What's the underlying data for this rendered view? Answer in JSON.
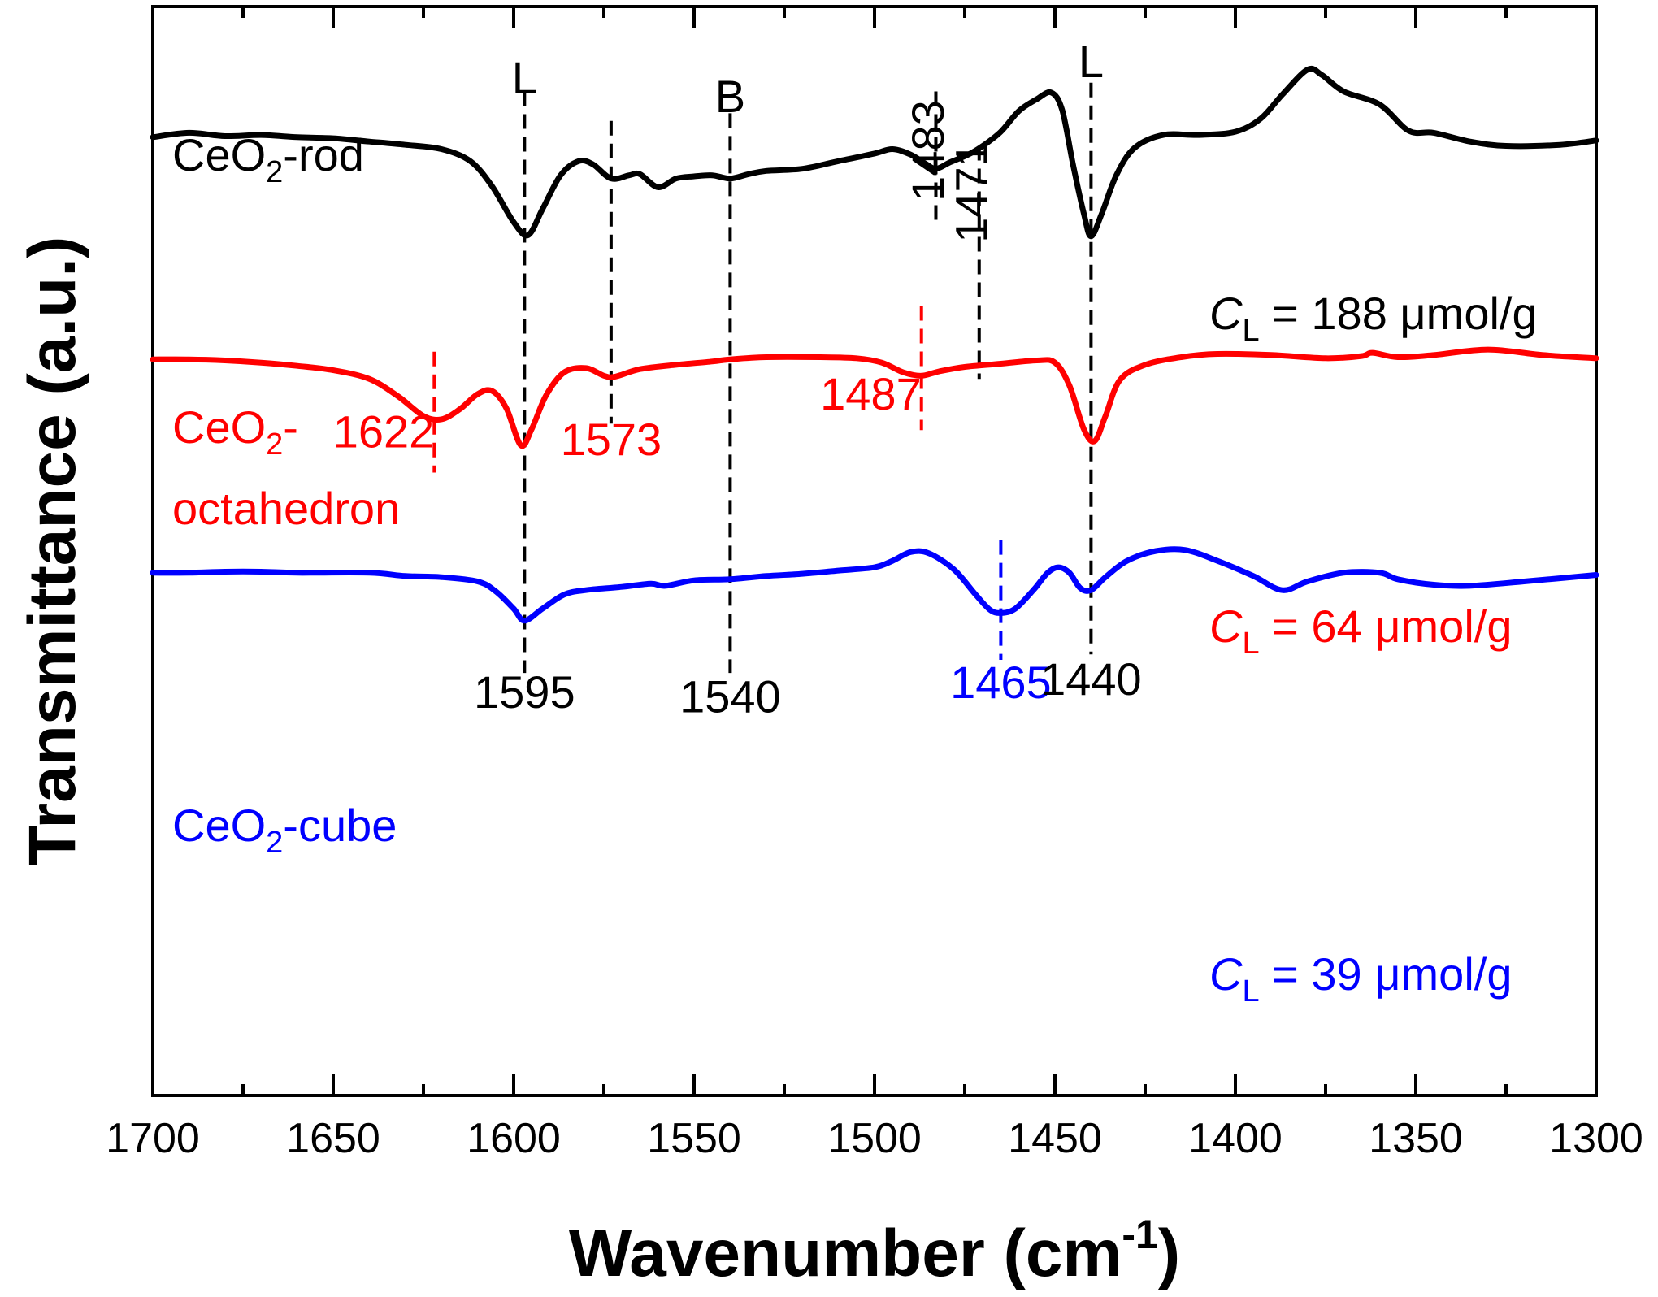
{
  "chart_data": {
    "type": "line",
    "xlabel": "Wavenumber (cm",
    "xlabel_sup": "-1",
    "xlabel_end": ")",
    "ylabel": "Transmittance (a.u.)",
    "xlim": [
      1700,
      1300
    ],
    "x_reversed": true,
    "y_ticks": "none",
    "xticks": [
      1700,
      1650,
      1600,
      1550,
      1500,
      1450,
      1400,
      1350,
      1300
    ],
    "grid": false,
    "series": [
      {
        "name": "CeO2-rod",
        "color": "#000000",
        "name_parts": [
          "CeO",
          "2",
          "-rod"
        ],
        "cl_label": [
          "C",
          "L",
          " = 188 μmol/g"
        ],
        "points": [
          [
            1700,
            0.12
          ],
          [
            1690,
            0.116
          ],
          [
            1680,
            0.119
          ],
          [
            1670,
            0.118
          ],
          [
            1660,
            0.12
          ],
          [
            1650,
            0.121
          ],
          [
            1640,
            0.124
          ],
          [
            1630,
            0.127
          ],
          [
            1620,
            0.131
          ],
          [
            1612,
            0.142
          ],
          [
            1606,
            0.165
          ],
          [
            1600,
            0.198
          ],
          [
            1596,
            0.21
          ],
          [
            1592,
            0.186
          ],
          [
            1587,
            0.155
          ],
          [
            1582,
            0.142
          ],
          [
            1578,
            0.145
          ],
          [
            1573,
            0.158
          ],
          [
            1568,
            0.155
          ],
          [
            1565,
            0.154
          ],
          [
            1560,
            0.166
          ],
          [
            1555,
            0.158
          ],
          [
            1550,
            0.156
          ],
          [
            1545,
            0.155
          ],
          [
            1540,
            0.158
          ],
          [
            1535,
            0.154
          ],
          [
            1530,
            0.151
          ],
          [
            1520,
            0.149
          ],
          [
            1510,
            0.142
          ],
          [
            1500,
            0.135
          ],
          [
            1495,
            0.131
          ],
          [
            1490,
            0.136
          ],
          [
            1486,
            0.144
          ],
          [
            1483,
            0.149
          ],
          [
            1479,
            0.143
          ],
          [
            1474,
            0.136
          ],
          [
            1470,
            0.128
          ],
          [
            1465,
            0.115
          ],
          [
            1460,
            0.096
          ],
          [
            1455,
            0.085
          ],
          [
            1451,
            0.079
          ],
          [
            1448,
            0.095
          ],
          [
            1445,
            0.145
          ],
          [
            1442,
            0.19
          ],
          [
            1440,
            0.211
          ],
          [
            1437,
            0.19
          ],
          [
            1433,
            0.155
          ],
          [
            1428,
            0.13
          ],
          [
            1420,
            0.118
          ],
          [
            1410,
            0.118
          ],
          [
            1400,
            0.115
          ],
          [
            1393,
            0.103
          ],
          [
            1387,
            0.081
          ],
          [
            1380,
            0.058
          ],
          [
            1376,
            0.063
          ],
          [
            1370,
            0.078
          ],
          [
            1360,
            0.09
          ],
          [
            1352,
            0.114
          ],
          [
            1345,
            0.116
          ],
          [
            1335,
            0.124
          ],
          [
            1325,
            0.128
          ],
          [
            1310,
            0.127
          ],
          [
            1300,
            0.123
          ]
        ]
      },
      {
        "name": "CeO2-octahedron",
        "color": "#ff0000",
        "name_parts": [
          "CeO",
          "2",
          "-",
          "octahedron"
        ],
        "cl_label": [
          "C",
          "L",
          " = 64 μmol/g"
        ],
        "points": [
          [
            1700,
            0.324
          ],
          [
            1690,
            0.324
          ],
          [
            1680,
            0.325
          ],
          [
            1670,
            0.327
          ],
          [
            1660,
            0.33
          ],
          [
            1650,
            0.334
          ],
          [
            1640,
            0.342
          ],
          [
            1632,
            0.358
          ],
          [
            1625,
            0.376
          ],
          [
            1620,
            0.379
          ],
          [
            1615,
            0.37
          ],
          [
            1610,
            0.356
          ],
          [
            1606,
            0.353
          ],
          [
            1602,
            0.369
          ],
          [
            1598,
            0.403
          ],
          [
            1595,
            0.388
          ],
          [
            1591,
            0.357
          ],
          [
            1586,
            0.336
          ],
          [
            1580,
            0.332
          ],
          [
            1575,
            0.339
          ],
          [
            1572,
            0.34
          ],
          [
            1565,
            0.333
          ],
          [
            1555,
            0.329
          ],
          [
            1545,
            0.326
          ],
          [
            1540,
            0.324
          ],
          [
            1530,
            0.322
          ],
          [
            1515,
            0.322
          ],
          [
            1505,
            0.323
          ],
          [
            1498,
            0.327
          ],
          [
            1492,
            0.336
          ],
          [
            1487,
            0.339
          ],
          [
            1482,
            0.335
          ],
          [
            1475,
            0.331
          ],
          [
            1465,
            0.328
          ],
          [
            1455,
            0.325
          ],
          [
            1450,
            0.327
          ],
          [
            1446,
            0.348
          ],
          [
            1442,
            0.388
          ],
          [
            1439,
            0.399
          ],
          [
            1436,
            0.376
          ],
          [
            1432,
            0.343
          ],
          [
            1425,
            0.329
          ],
          [
            1415,
            0.322
          ],
          [
            1405,
            0.319
          ],
          [
            1390,
            0.32
          ],
          [
            1375,
            0.323
          ],
          [
            1365,
            0.321
          ],
          [
            1362,
            0.318
          ],
          [
            1355,
            0.322
          ],
          [
            1345,
            0.32
          ],
          [
            1330,
            0.315
          ],
          [
            1315,
            0.32
          ],
          [
            1300,
            0.323
          ]
        ]
      },
      {
        "name": "CeO2-cube",
        "color": "#0000ff",
        "name_parts": [
          "CeO",
          "2",
          "-cube"
        ],
        "cl_label": [
          "C",
          "L",
          " = 39 μmol/g"
        ],
        "points": [
          [
            1700,
            0.52
          ],
          [
            1690,
            0.52
          ],
          [
            1680,
            0.519
          ],
          [
            1670,
            0.519
          ],
          [
            1660,
            0.52
          ],
          [
            1640,
            0.52
          ],
          [
            1630,
            0.523
          ],
          [
            1620,
            0.524
          ],
          [
            1610,
            0.528
          ],
          [
            1605,
            0.537
          ],
          [
            1600,
            0.553
          ],
          [
            1597,
            0.564
          ],
          [
            1592,
            0.553
          ],
          [
            1586,
            0.54
          ],
          [
            1580,
            0.536
          ],
          [
            1570,
            0.533
          ],
          [
            1562,
            0.53
          ],
          [
            1558,
            0.532
          ],
          [
            1550,
            0.527
          ],
          [
            1540,
            0.526
          ],
          [
            1530,
            0.523
          ],
          [
            1520,
            0.521
          ],
          [
            1510,
            0.518
          ],
          [
            1500,
            0.515
          ],
          [
            1495,
            0.509
          ],
          [
            1490,
            0.501
          ],
          [
            1485,
            0.502
          ],
          [
            1478,
            0.517
          ],
          [
            1472,
            0.54
          ],
          [
            1468,
            0.554
          ],
          [
            1465,
            0.557
          ],
          [
            1461,
            0.553
          ],
          [
            1456,
            0.536
          ],
          [
            1452,
            0.52
          ],
          [
            1449,
            0.515
          ],
          [
            1446,
            0.52
          ],
          [
            1443,
            0.534
          ],
          [
            1440,
            0.536
          ],
          [
            1436,
            0.524
          ],
          [
            1430,
            0.509
          ],
          [
            1422,
            0.5
          ],
          [
            1414,
            0.499
          ],
          [
            1405,
            0.509
          ],
          [
            1395,
            0.523
          ],
          [
            1387,
            0.536
          ],
          [
            1380,
            0.528
          ],
          [
            1370,
            0.52
          ],
          [
            1360,
            0.52
          ],
          [
            1355,
            0.526
          ],
          [
            1345,
            0.531
          ],
          [
            1335,
            0.532
          ],
          [
            1320,
            0.528
          ],
          [
            1300,
            0.522
          ]
        ]
      }
    ],
    "markers": [
      {
        "x": 1597,
        "color": "#000000",
        "y_from": 0.078,
        "y_to": 0.612
      },
      {
        "x": 1573,
        "color": "#000000",
        "y_from": 0.105,
        "y_to": 0.383
      },
      {
        "x": 1540,
        "color": "#000000",
        "y_from": 0.098,
        "y_to": 0.612
      },
      {
        "x": 1483,
        "color": "#000000",
        "y_from": 0.078,
        "y_to": 0.198
      },
      {
        "x": 1471,
        "color": "#000000",
        "y_from": 0.128,
        "y_to": 0.342
      },
      {
        "x": 1440,
        "color": "#000000",
        "y_from": 0.07,
        "y_to": 0.595
      },
      {
        "x": 1622,
        "color": "#ff0000",
        "y_from": 0.317,
        "y_to": 0.428
      },
      {
        "x": 1487,
        "color": "#ff0000",
        "y_from": 0.275,
        "y_to": 0.389
      },
      {
        "x": 1465,
        "color": "#0000ff",
        "y_from": 0.49,
        "y_to": 0.6
      }
    ],
    "annotations": [
      {
        "text": "L",
        "x": 1597,
        "y": 0.08,
        "color": "#000000",
        "anchor": "middle",
        "rotate": false
      },
      {
        "text": "B",
        "x": 1540,
        "y": 0.097,
        "color": "#000000",
        "anchor": "middle",
        "rotate": false
      },
      {
        "text": "L",
        "x": 1440,
        "y": 0.065,
        "color": "#000000",
        "anchor": "middle",
        "rotate": false
      },
      {
        "text": "1483",
        "x": 1484,
        "y": 0.086,
        "color": "#000000",
        "anchor": "start",
        "rotate": true
      },
      {
        "text": "1471",
        "x": 1472,
        "y": 0.124,
        "color": "#000000",
        "anchor": "start",
        "rotate": true
      },
      {
        "text": "1622",
        "x": 1622,
        "y": 0.405,
        "color": "#ff0000",
        "anchor": "end",
        "rotate": false
      },
      {
        "text": "1573",
        "x": 1573,
        "y": 0.412,
        "color": "#ff0000",
        "anchor": "middle",
        "rotate": false
      },
      {
        "text": "1487",
        "x": 1487,
        "y": 0.37,
        "color": "#ff0000",
        "anchor": "end",
        "rotate": false
      },
      {
        "text": "1595",
        "x": 1597,
        "y": 0.644,
        "color": "#000000",
        "anchor": "middle",
        "rotate": false
      },
      {
        "text": "1540",
        "x": 1540,
        "y": 0.648,
        "color": "#000000",
        "anchor": "middle",
        "rotate": false
      },
      {
        "text": "1465",
        "x": 1465,
        "y": 0.635,
        "color": "#0000ff",
        "anchor": "middle",
        "rotate": false
      },
      {
        "text": "1440",
        "x": 1440,
        "y": 0.632,
        "color": "#000000",
        "anchor": "middle",
        "rotate": false
      }
    ]
  }
}
